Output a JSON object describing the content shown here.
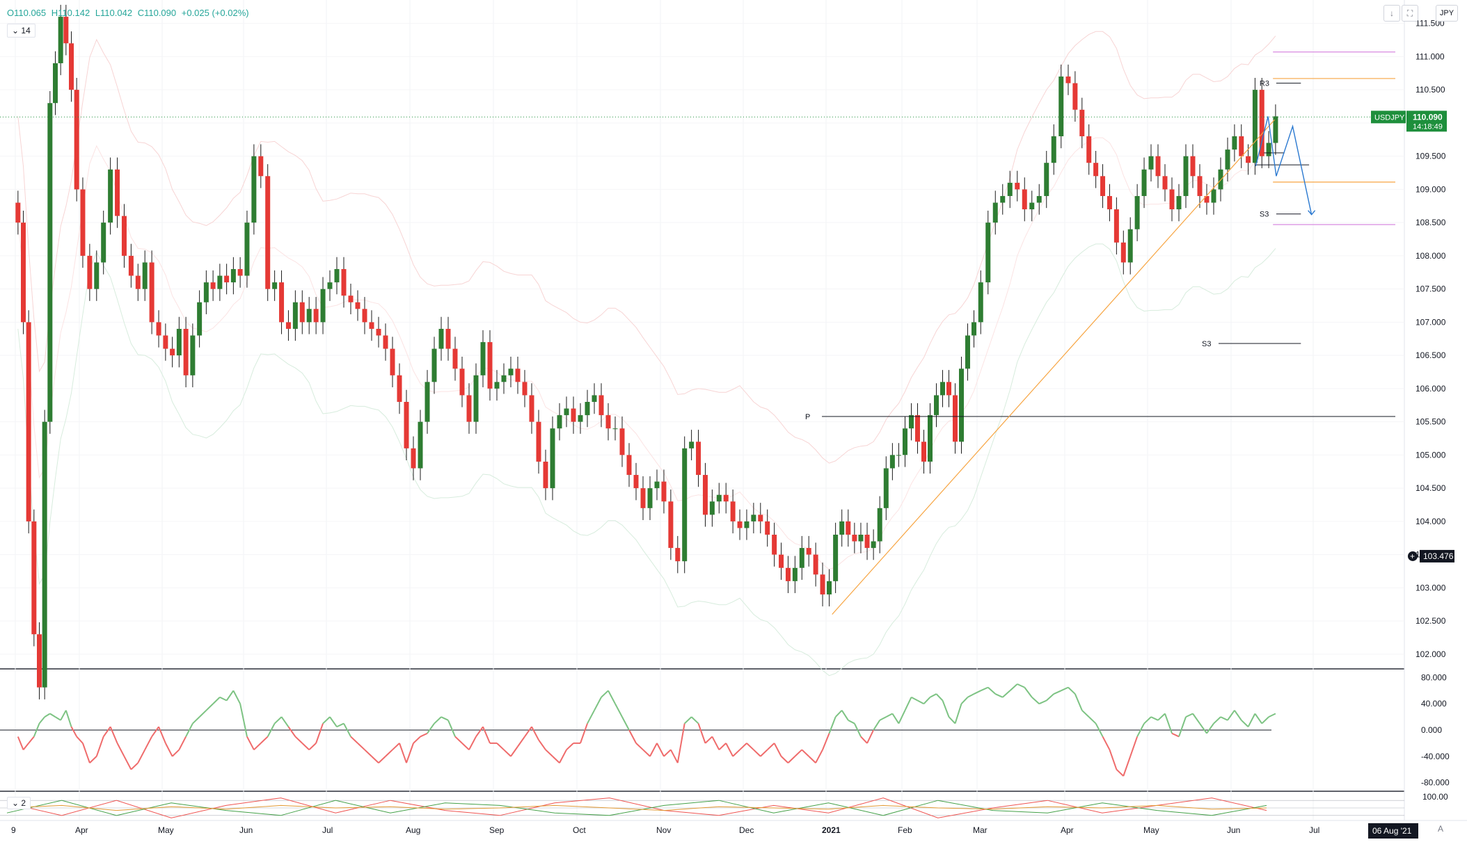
{
  "legend": {
    "open": "O110.065",
    "high": "H110.142",
    "low": "L110.042",
    "close": "C110.090",
    "change": "+0.025 (+0.02%)"
  },
  "period_main": "14",
  "period_osc2": "2",
  "currency": "JPY",
  "auto_label": "A",
  "icons": {
    "arrow": "down-arrow-icon",
    "maximize": "maximize-icon"
  },
  "colors": {
    "up": "#26a69a",
    "down": "#ef5350",
    "candle_up": "#2e7d32",
    "candle_down": "#e53935",
    "level": "#131722",
    "orange": "#f7a440",
    "violet": "#d88ae0",
    "green_tag": "#1e8f3c",
    "blue_path": "#2b79d0",
    "cci_pos": "#7dc383",
    "cci_neg": "#ef6b6b"
  },
  "chart_data": [
    {
      "type": "candlestick",
      "symbol": "USDJPY",
      "last_price": "110.090",
      "countdown": "14:18:49",
      "crosshair_price": "103.476",
      "ylim": [
        101.8,
        111.8
      ],
      "y_ticks": [
        "111.500",
        "111.000",
        "110.500",
        "110.000",
        "109.500",
        "109.000",
        "108.500",
        "108.000",
        "107.500",
        "107.000",
        "106.500",
        "106.000",
        "105.500",
        "105.000",
        "104.500",
        "104.000",
        "103.500",
        "103.000",
        "102.500",
        "102.000"
      ],
      "x_labels": [
        "9",
        "Apr",
        "May",
        "Jun",
        "Jul",
        "Aug",
        "Sep",
        "Oct",
        "Nov",
        "Dec",
        "2021",
        "Feb",
        "Mar",
        "Apr",
        "May",
        "Jun",
        "Jul"
      ],
      "x_label_months": [
        0,
        1,
        2,
        3,
        4,
        5,
        6,
        7,
        8,
        9,
        10,
        11,
        12,
        13,
        14,
        15,
        16
      ],
      "date_tag": "06 Aug '21",
      "closes_by_month": [
        {
          "month": "Mar 2020",
          "values": [
            108.5,
            107.0,
            104.0,
            102.3,
            101.5,
            105.5,
            110.3,
            110.9,
            111.6,
            111.2,
            110.5,
            109.0
          ]
        },
        {
          "month": "Apr 2020",
          "values": [
            108.0,
            107.5,
            107.9,
            108.5,
            109.3,
            108.6,
            108.0,
            107.7,
            107.5,
            107.9,
            107.0,
            106.8
          ]
        },
        {
          "month": "May 2020",
          "values": [
            106.6,
            106.5,
            106.9,
            106.2,
            106.8,
            107.3,
            107.6,
            107.5,
            107.7,
            107.6,
            107.8,
            107.7
          ]
        },
        {
          "month": "Jun 2020",
          "values": [
            108.5,
            109.5,
            109.2,
            107.5,
            107.6,
            107.0,
            106.9,
            107.3,
            107.0,
            107.2,
            107.0,
            107.5
          ]
        },
        {
          "month": "Jul 2020",
          "values": [
            107.6,
            107.8,
            107.4,
            107.3,
            107.2,
            107.0,
            106.9,
            106.8,
            106.6,
            106.2,
            105.8,
            105.1
          ]
        },
        {
          "month": "Aug 2020",
          "values": [
            104.8,
            105.5,
            106.1,
            106.6,
            106.9,
            106.6,
            106.3,
            105.9,
            105.5,
            106.2,
            106.7,
            106.0
          ]
        },
        {
          "month": "Sep 2020",
          "values": [
            106.1,
            106.2,
            106.3,
            106.1,
            105.9,
            105.5,
            104.9,
            104.5,
            105.4,
            105.6,
            105.7,
            105.5
          ]
        },
        {
          "month": "Oct 2020",
          "values": [
            105.6,
            105.8,
            105.9,
            105.6,
            105.4,
            105.4,
            105.0,
            104.7,
            104.5,
            104.2,
            104.5,
            104.6
          ]
        },
        {
          "month": "Nov 2020",
          "values": [
            104.3,
            103.6,
            103.4,
            105.1,
            105.2,
            104.7,
            104.1,
            104.3,
            104.4,
            104.3,
            104.0,
            103.9
          ]
        },
        {
          "month": "Dec 2020",
          "values": [
            104.0,
            104.1,
            104.0,
            103.8,
            103.5,
            103.3,
            103.1,
            103.3,
            103.6,
            103.5,
            103.2,
            102.9
          ]
        },
        {
          "month": "Jan 2021",
          "values": [
            103.1,
            103.8,
            104.0,
            103.8,
            103.7,
            103.8,
            103.6,
            103.7,
            104.2,
            104.8,
            105.0,
            105.0
          ]
        },
        {
          "month": "Feb 2021",
          "values": [
            105.4,
            105.6,
            105.2,
            104.9,
            105.6,
            105.9,
            106.1,
            105.9,
            105.2,
            106.3,
            106.8,
            107.0
          ]
        },
        {
          "month": "Mar 2021",
          "values": [
            107.6,
            108.5,
            108.8,
            108.9,
            109.1,
            109.0,
            108.7,
            108.8,
            108.9,
            109.4,
            109.8,
            110.7
          ]
        },
        {
          "month": "Apr 2021",
          "values": [
            110.6,
            110.2,
            109.8,
            109.4,
            109.2,
            108.9,
            108.7,
            108.2,
            107.9,
            108.4,
            108.9,
            109.3
          ]
        },
        {
          "month": "May 2021",
          "values": [
            109.5,
            109.2,
            109.0,
            108.7,
            108.9,
            109.5,
            109.2,
            108.9,
            108.8,
            109.0,
            109.3,
            109.6
          ]
        },
        {
          "month": "Jun 2021",
          "values": [
            109.8,
            109.5,
            109.4,
            110.5,
            109.5,
            109.7,
            110.1
          ]
        }
      ],
      "levels": [
        {
          "label": "R3",
          "price": 110.6,
          "from_month": 15.55,
          "to_month": 15.85
        },
        {
          "label": "P",
          "price": 105.58,
          "from_month": 9.95,
          "to_month": 17.5
        },
        {
          "label": "S3",
          "price": 106.68,
          "from_month": 14.85,
          "to_month": 15.85
        },
        {
          "label": "S3",
          "price": 108.63,
          "from_month": 15.55,
          "to_month": 15.85
        },
        {
          "label": "",
          "price": 109.55,
          "from_month": 15.4,
          "to_month": 15.65
        },
        {
          "label": "",
          "price": 109.37,
          "from_month": 15.3,
          "to_month": 15.95
        }
      ],
      "orange_levels": [
        110.67,
        109.11
      ],
      "violet_levels": [
        111.07,
        108.47
      ],
      "trendline": {
        "from": {
          "month": 10.08,
          "price": 102.6
        },
        "to": {
          "month": 15.53,
          "price": 110.05
        }
      },
      "projection": [
        [
          15.3,
          109.35
        ],
        [
          15.45,
          110.1
        ],
        [
          15.55,
          109.2
        ],
        [
          15.75,
          109.95
        ],
        [
          15.98,
          108.62
        ]
      ]
    },
    {
      "type": "line",
      "name": "oscillator",
      "ylim": [
        -90,
        90
      ],
      "y_ticks": [
        "80.000",
        "40.000",
        "0.000",
        "-40.000",
        "-80.000"
      ],
      "values_by_month": [
        [
          -10,
          -30,
          -20,
          -10,
          10,
          20,
          25,
          20,
          15,
          30,
          5,
          -10
        ],
        [
          -20,
          -50,
          -40,
          -10,
          5,
          -20,
          -40,
          -60,
          -50,
          -30,
          -10,
          5
        ],
        [
          -20,
          -40,
          -30,
          -10,
          10,
          20,
          30,
          40,
          50,
          45,
          60,
          40
        ],
        [
          -10,
          -30,
          -20,
          -10,
          10,
          20,
          5,
          -10,
          -20,
          -30,
          -20,
          10
        ],
        [
          20,
          5,
          10,
          -10,
          -20,
          -30,
          -40,
          -50,
          -40,
          -30,
          -20,
          -50
        ],
        [
          -20,
          -10,
          -5,
          10,
          20,
          15,
          -10,
          -20,
          -30,
          -10,
          5,
          -20
        ],
        [
          -20,
          -30,
          -40,
          -25,
          -10,
          5,
          -15,
          -30,
          -40,
          -50,
          -30,
          -20
        ],
        [
          -20,
          10,
          30,
          50,
          60,
          40,
          20,
          0,
          -20,
          -30,
          -40,
          -20
        ],
        [
          -40,
          -30,
          -50,
          10,
          20,
          10,
          -20,
          -10,
          -30,
          -20,
          -40,
          -30
        ],
        [
          -20,
          -30,
          -40,
          -30,
          -20,
          -40,
          -50,
          -40,
          -30,
          -40,
          -50,
          -30
        ],
        [
          -5,
          20,
          30,
          15,
          10,
          -10,
          -20,
          0,
          15,
          20,
          25,
          10
        ],
        [
          30,
          50,
          45,
          40,
          50,
          55,
          45,
          20,
          10,
          40,
          50,
          55
        ],
        [
          60,
          65,
          55,
          50,
          60,
          70,
          65,
          50,
          40,
          45,
          55,
          60
        ],
        [
          65,
          55,
          30,
          20,
          10,
          -10,
          -30,
          -60,
          -70,
          -40,
          -10,
          10
        ],
        [
          20,
          15,
          25,
          -5,
          -10,
          20,
          25,
          10,
          -5,
          10,
          20,
          15
        ],
        [
          30,
          15,
          5,
          25,
          10,
          20,
          25
        ]
      ]
    },
    {
      "type": "line",
      "name": "stochastic",
      "ylim": [
        0,
        100
      ],
      "y_ticks": [
        "100.00"
      ],
      "series": [
        {
          "color": "#ef5350",
          "values": [
            70,
            20,
            80,
            10,
            60,
            90,
            30,
            80,
            40,
            20,
            70,
            90,
            40,
            20,
            60,
            30,
            90,
            10,
            50,
            80,
            30,
            60,
            90,
            40
          ]
        },
        {
          "color": "#43a047",
          "values": [
            30,
            80,
            20,
            70,
            40,
            20,
            80,
            30,
            70,
            60,
            30,
            20,
            60,
            80,
            30,
            70,
            20,
            80,
            40,
            30,
            70,
            40,
            20,
            60
          ]
        },
        {
          "color": "#e29a34",
          "values": [
            50,
            60,
            40,
            55,
            45,
            60,
            50,
            55,
            45,
            50,
            60,
            50,
            40,
            55,
            50,
            45,
            60,
            50,
            45,
            55,
            50,
            60,
            45,
            50
          ]
        }
      ]
    }
  ]
}
